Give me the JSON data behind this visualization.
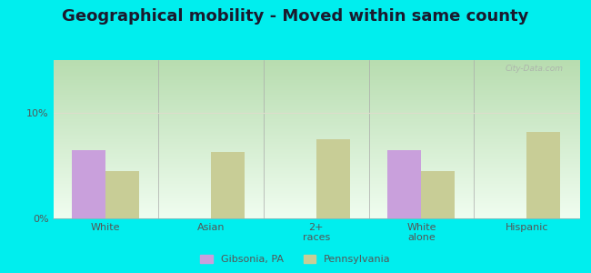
{
  "title": "Geographical mobility - Moved within same county",
  "categories": [
    "White",
    "Asian",
    "2+\nraces",
    "White\nalone",
    "Hispanic"
  ],
  "gibsonia_values": [
    6.5,
    0,
    0,
    6.5,
    0
  ],
  "pennsylvania_values": [
    4.5,
    6.3,
    7.5,
    4.5,
    8.2
  ],
  "gibsonia_color": "#c9a0dc",
  "pennsylvania_color": "#c8cd96",
  "outer_bg": "#00eeee",
  "title_fontsize": 13,
  "title_color": "#1a1a2e",
  "ylim": [
    0,
    15
  ],
  "yticks": [
    0,
    10
  ],
  "ytick_labels": [
    "0%",
    "10%"
  ],
  "bar_width": 0.32,
  "legend_label1": "Gibsonia, PA",
  "legend_label2": "Pennsylvania",
  "watermark": "City-Data.com",
  "grad_top": "#b8ddb0",
  "grad_bot": "#f0fdf0",
  "grid_color": "#e0e0c0",
  "tick_color": "#555555"
}
